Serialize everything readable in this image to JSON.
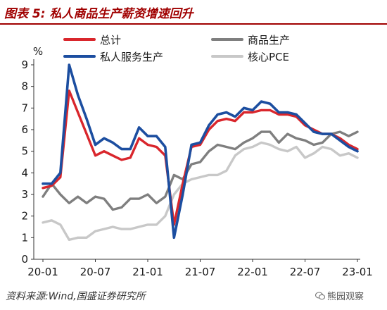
{
  "figure": {
    "title": "图表 5:  私人商品生产薪资增速回升",
    "source": "资料来源:Wind,国盛证券研究所",
    "watermark": "熊园观察",
    "watermark_icon": "wechat-icon"
  },
  "chart_data": {
    "type": "line",
    "title": "",
    "unit": "%",
    "xlabel": "",
    "ylabel": "%",
    "ylim": [
      0,
      9
    ],
    "yticks": [
      0,
      1,
      2,
      3,
      4,
      5,
      6,
      7,
      8,
      9
    ],
    "x_tick_labels": [
      "20-01",
      "20-07",
      "21-01",
      "21-07",
      "22-01",
      "22-07",
      "23-01"
    ],
    "x": [
      "20-01",
      "20-02",
      "20-03",
      "20-04",
      "20-05",
      "20-06",
      "20-07",
      "20-08",
      "20-09",
      "20-10",
      "20-11",
      "20-12",
      "21-01",
      "21-02",
      "21-03",
      "21-04",
      "21-05",
      "21-06",
      "21-07",
      "21-08",
      "21-09",
      "21-10",
      "21-11",
      "21-12",
      "22-01",
      "22-02",
      "22-03",
      "22-04",
      "22-05",
      "22-06",
      "22-07",
      "22-08",
      "22-09",
      "22-10",
      "22-11",
      "22-12",
      "23-01"
    ],
    "grid": false,
    "legend_position": "top",
    "series": [
      {
        "name": "总计",
        "color": "#d9262c",
        "values": [
          3.3,
          3.4,
          3.8,
          7.8,
          6.8,
          5.8,
          4.8,
          5.0,
          4.8,
          4.6,
          4.7,
          5.6,
          5.3,
          5.2,
          4.8,
          1.6,
          3.5,
          5.2,
          5.3,
          6.0,
          6.4,
          6.5,
          6.4,
          6.8,
          6.8,
          6.9,
          6.9,
          6.7,
          6.7,
          6.6,
          6.2,
          6.0,
          5.8,
          5.8,
          5.6,
          5.3,
          5.1
        ]
      },
      {
        "name": "商品生产",
        "color": "#7f7f7f",
        "values": [
          2.9,
          3.5,
          3.0,
          2.6,
          2.9,
          2.6,
          2.9,
          2.8,
          2.3,
          2.4,
          2.8,
          2.8,
          3.0,
          2.6,
          2.9,
          3.9,
          3.7,
          4.4,
          4.5,
          5.0,
          5.3,
          5.2,
          5.1,
          5.4,
          5.6,
          5.9,
          5.9,
          5.4,
          5.8,
          5.6,
          5.5,
          5.3,
          5.4,
          5.8,
          5.9,
          5.7,
          5.9
        ]
      },
      {
        "name": "私人服务生产",
        "color": "#1c4ea0",
        "values": [
          3.5,
          3.5,
          4.0,
          9.0,
          7.6,
          6.5,
          5.3,
          5.6,
          5.4,
          5.1,
          5.1,
          6.1,
          5.7,
          5.7,
          5.2,
          1.0,
          3.0,
          5.3,
          5.4,
          6.2,
          6.7,
          6.8,
          6.6,
          7.0,
          6.9,
          7.3,
          7.2,
          6.8,
          6.8,
          6.7,
          6.3,
          5.9,
          5.8,
          5.8,
          5.5,
          5.2,
          5.0
        ]
      },
      {
        "name": "核心PCE",
        "color": "#c8c8c8",
        "values": [
          1.7,
          1.8,
          1.6,
          0.9,
          1.0,
          1.0,
          1.3,
          1.4,
          1.5,
          1.4,
          1.4,
          1.5,
          1.6,
          1.6,
          2.0,
          3.0,
          3.5,
          3.7,
          3.8,
          3.9,
          3.9,
          4.1,
          4.8,
          5.1,
          5.2,
          5.4,
          5.3,
          5.1,
          5.0,
          5.2,
          4.7,
          4.9,
          5.2,
          5.1,
          4.8,
          4.9,
          4.7
        ]
      }
    ]
  }
}
